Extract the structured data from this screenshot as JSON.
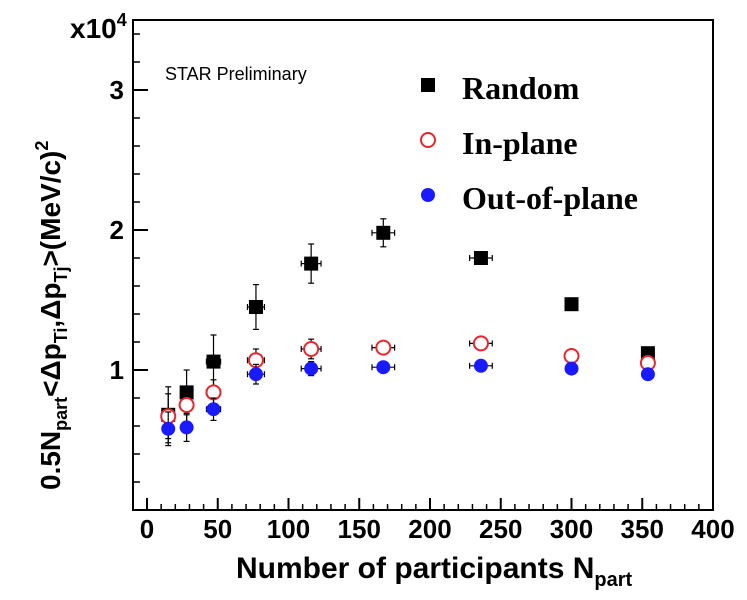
{
  "chart_data": {
    "type": "scatter",
    "title": "",
    "annotation": "STAR Preliminary",
    "xlabel": {
      "main": "Number of participants N",
      "sub": "part"
    },
    "ylabel": {
      "p1": "0.5N",
      "p1_sub": "part",
      "p2": "<Δp",
      "p2_sub": "Ti",
      "p3": ",Δp",
      "p3_sub": "Tj",
      "p4": ">(MeV/c)",
      "p4_sup": "2"
    },
    "y_multiplier": {
      "base": "x10",
      "exponent": "4"
    },
    "xlim": [
      0,
      400
    ],
    "ylim": [
      0,
      3.5
    ],
    "x_ticks": [
      0,
      50,
      100,
      150,
      200,
      250,
      300,
      350,
      400
    ],
    "x_tick_labels": [
      "0",
      "50",
      "100",
      "150",
      "200",
      "250",
      "300",
      "350",
      "400"
    ],
    "y_ticks": [
      1,
      2,
      3
    ],
    "y_tick_labels": [
      "1",
      "2",
      "3"
    ],
    "legend_position": "top-right",
    "series": [
      {
        "name": "Random",
        "marker": "square-filled",
        "color": "#000000",
        "points": [
          {
            "x": 15,
            "y": 0.68,
            "xerr": 4,
            "yerr": 0.2
          },
          {
            "x": 28,
            "y": 0.84,
            "xerr": 4,
            "yerr": 0.16
          },
          {
            "x": 47,
            "y": 1.06,
            "xerr": 5,
            "yerr": 0.19
          },
          {
            "x": 77,
            "y": 1.45,
            "xerr": 6,
            "yerr": 0.16
          },
          {
            "x": 116,
            "y": 1.76,
            "xerr": 7,
            "yerr": 0.14
          },
          {
            "x": 167,
            "y": 1.98,
            "xerr": 8,
            "yerr": 0.1
          },
          {
            "x": 236,
            "y": 1.8,
            "xerr": 8,
            "yerr": 0.04
          },
          {
            "x": 300,
            "y": 1.47,
            "xerr": 0,
            "yerr": 0
          },
          {
            "x": 354,
            "y": 1.12,
            "xerr": 0,
            "yerr": 0
          }
        ]
      },
      {
        "name": "In-plane",
        "marker": "circle-open",
        "color": "#e8262b",
        "points": [
          {
            "x": 15,
            "y": 0.67,
            "xerr": 4,
            "yerr": 0.16
          },
          {
            "x": 28,
            "y": 0.75,
            "xerr": 4,
            "yerr": 0.12
          },
          {
            "x": 47,
            "y": 0.84,
            "xerr": 5,
            "yerr": 0.09
          },
          {
            "x": 77,
            "y": 1.07,
            "xerr": 6,
            "yerr": 0.08
          },
          {
            "x": 116,
            "y": 1.15,
            "xerr": 7,
            "yerr": 0.07
          },
          {
            "x": 167,
            "y": 1.16,
            "xerr": 8,
            "yerr": 0.04
          },
          {
            "x": 236,
            "y": 1.19,
            "xerr": 8,
            "yerr": 0.03
          },
          {
            "x": 300,
            "y": 1.1,
            "xerr": 0,
            "yerr": 0
          },
          {
            "x": 354,
            "y": 1.05,
            "xerr": 0,
            "yerr": 0
          }
        ]
      },
      {
        "name": "Out-of-plane",
        "marker": "circle-filled",
        "color": "#1a1aff",
        "points": [
          {
            "x": 15,
            "y": 0.58,
            "xerr": 4,
            "yerr": 0.12
          },
          {
            "x": 28,
            "y": 0.59,
            "xerr": 4,
            "yerr": 0.1
          },
          {
            "x": 47,
            "y": 0.72,
            "xerr": 5,
            "yerr": 0.08
          },
          {
            "x": 77,
            "y": 0.97,
            "xerr": 6,
            "yerr": 0.07
          },
          {
            "x": 116,
            "y": 1.01,
            "xerr": 7,
            "yerr": 0.05
          },
          {
            "x": 167,
            "y": 1.02,
            "xerr": 8,
            "yerr": 0.03
          },
          {
            "x": 236,
            "y": 1.03,
            "xerr": 8,
            "yerr": 0.02
          },
          {
            "x": 300,
            "y": 1.01,
            "xerr": 0,
            "yerr": 0
          },
          {
            "x": 354,
            "y": 0.97,
            "xerr": 0,
            "yerr": 0
          }
        ]
      }
    ]
  }
}
